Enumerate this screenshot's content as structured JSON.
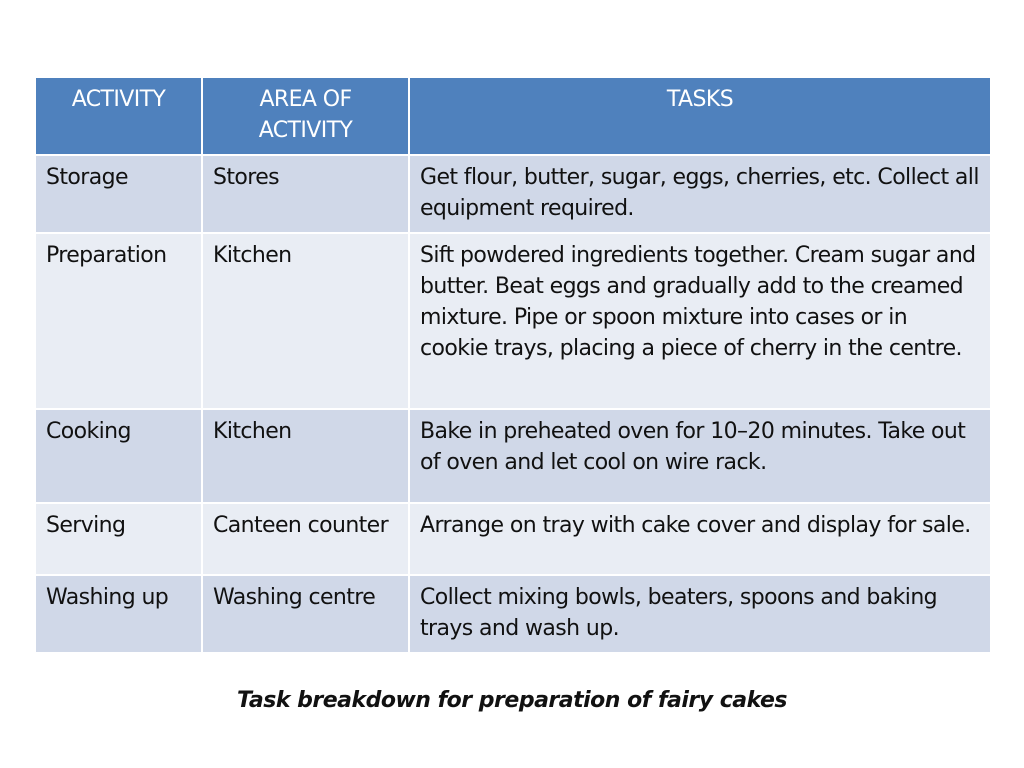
{
  "table": {
    "headers": [
      "ACTIVITY",
      "AREA OF ACTIVITY",
      "TASKS"
    ],
    "rows": [
      {
        "activity": "Storage",
        "area": "Stores",
        "tasks": "Get flour, butter, sugar, eggs, cherries, etc. Collect all equipment required."
      },
      {
        "activity": "Preparation",
        "area": "Kitchen",
        "tasks": "Sift powdered ingredients together. Cream sugar and butter. Beat eggs and gradually add to the creamed mixture. Pipe or spoon mixture into cases or in cookie trays, placing a piece of cherry in the centre."
      },
      {
        "activity": "Cooking",
        "area": "Kitchen",
        "tasks": "Bake in preheated oven for 10–20 minutes. Take out of oven and let cool on wire rack."
      },
      {
        "activity": "Serving",
        "area": "Canteen counter",
        "tasks": "Arrange on tray with cake cover and display for sale."
      },
      {
        "activity": "Washing up",
        "area": "Washing centre",
        "tasks": "Collect mixing bowls, beaters, spoons and baking trays and wash up."
      }
    ]
  },
  "caption": "Task breakdown for preparation of fairy cakes",
  "colors": {
    "header_bg": "#4f81bd",
    "row_dark": "#d0d8e8",
    "row_light": "#e9edf4"
  }
}
